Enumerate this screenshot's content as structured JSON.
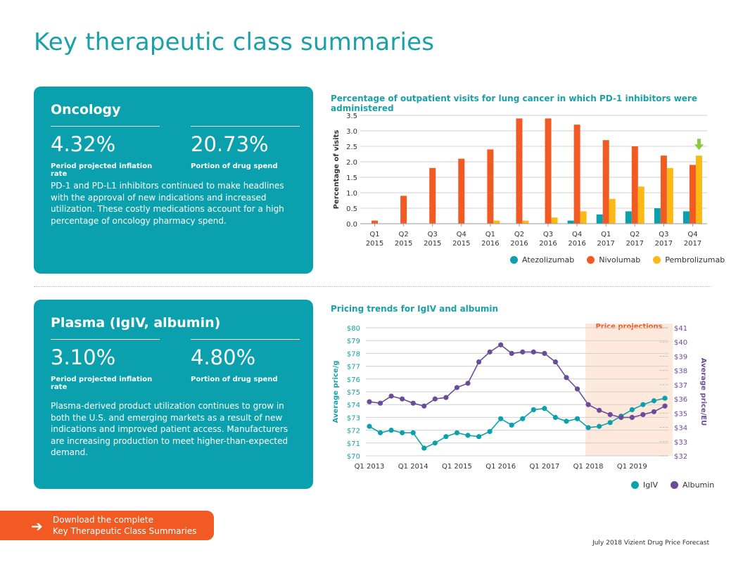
{
  "page": {
    "title": "Key therapeutic class summaries",
    "footer": "July 2018 Vizient Drug Price Forecast"
  },
  "oncology": {
    "title": "Oncology",
    "stat1": {
      "value": "4.32%",
      "label": "Period projected inflation rate"
    },
    "stat2": {
      "value": "20.73%",
      "label": "Portion of drug spend"
    },
    "body": "PD-1 and PD-L1 inhibitors continued to make headlines with the approval of new indications and increased utilization. These costly medications account for a high percentage of oncology pharmacy spend."
  },
  "plasma": {
    "title": "Plasma (IgIV, albumin)",
    "stat1": {
      "value": "3.10%",
      "label": "Period projected inflation rate"
    },
    "stat2": {
      "value": "4.80%",
      "label": "Portion of drug spend"
    },
    "body": "Plasma-derived product utilization continues to grow in both the U.S. and emerging markets as a result of new indications and improved patient access. Manufacturers are increasing production to meet higher-than-expected demand."
  },
  "download": {
    "line1": "Download the complete",
    "line2": "Key Therapeutic Class Summaries"
  },
  "colors": {
    "teal": "#0aa0ad",
    "orange": "#f15a22",
    "yellow": "#fdb913",
    "purple": "#6b4c9a",
    "shade": "#fde9dc"
  },
  "chart_data": [
    {
      "type": "bar",
      "title": "Percentage of outpatient visits for lung cancer in which PD-1 inhibitors were administered",
      "xlabel": "",
      "ylabel": "Percentage of visits",
      "ylim": [
        0,
        3.5
      ],
      "yticks": [
        "0.0",
        "0.5",
        "1.0",
        "1.5",
        "2.0",
        "2.5",
        "3.0",
        "3.5"
      ],
      "grid": true,
      "categories": [
        [
          "Q1",
          "2015"
        ],
        [
          "Q2",
          "2015"
        ],
        [
          "Q3",
          "2015"
        ],
        [
          "Q4",
          "2015"
        ],
        [
          "Q1",
          "2016"
        ],
        [
          "Q2",
          "2016"
        ],
        [
          "Q3",
          "2016"
        ],
        [
          "Q4",
          "2016"
        ],
        [
          "Q1",
          "2017"
        ],
        [
          "Q2",
          "2017"
        ],
        [
          "Q3",
          "2017"
        ],
        [
          "Q4",
          "2017"
        ]
      ],
      "series": [
        {
          "name": "Atezolizumab",
          "color": "#0aa0ad",
          "values": [
            0,
            0,
            0,
            0,
            0,
            0,
            0,
            0.1,
            0.3,
            0.4,
            0.5,
            0.4
          ]
        },
        {
          "name": "Nivolumab",
          "color": "#f15a22",
          "values": [
            0.1,
            0.9,
            1.8,
            2.1,
            2.4,
            3.4,
            3.4,
            3.2,
            2.7,
            2.5,
            2.2,
            1.9
          ]
        },
        {
          "name": "Pembrolizumab",
          "color": "#fdb913",
          "values": [
            0,
            0,
            0,
            0,
            0.1,
            0.1,
            0.2,
            0.4,
            0.8,
            1.2,
            1.8,
            2.2
          ]
        }
      ],
      "annotation": "down-arrow-icon",
      "legend_position": "bottom-right"
    },
    {
      "type": "line",
      "title": "Pricing trends for IgIV and albumin",
      "ylabel": "Average price/g",
      "y2label": "Average price/EU",
      "ylim": [
        70,
        80
      ],
      "y2lim": [
        32,
        41
      ],
      "yticks": [
        "$70",
        "$71",
        "$72",
        "$73",
        "$74",
        "$75",
        "$76",
        "$77",
        "$78",
        "$79",
        "$80"
      ],
      "y2ticks": [
        "$32",
        "$33",
        "$34",
        "$35",
        "$36",
        "$37",
        "$38",
        "$39",
        "$40",
        "$41"
      ],
      "xticks": [
        "Q1 2013",
        "Q1 2014",
        "Q1 2015",
        "Q1 2016",
        "Q1 2017",
        "Q1 2018",
        "Q1 2019"
      ],
      "projection_label": "Price projections",
      "projection_start_index": 20,
      "series": [
        {
          "name": "IgIV",
          "axis": "left",
          "color": "#0aa0ad",
          "values": [
            72.3,
            71.8,
            72.0,
            71.8,
            71.8,
            70.6,
            71.0,
            71.5,
            71.8,
            71.6,
            71.5,
            71.9,
            72.9,
            72.4,
            72.9,
            73.6,
            73.7,
            73.0,
            72.7,
            72.9,
            72.2,
            72.3,
            72.6,
            73.1,
            73.6,
            74.0,
            74.3,
            74.5
          ]
        },
        {
          "name": "Albumin",
          "axis": "right",
          "color": "#6b4c9a",
          "values": [
            35.8,
            35.7,
            36.2,
            36.0,
            35.7,
            35.5,
            36.0,
            36.1,
            36.8,
            37.1,
            38.6,
            39.3,
            39.8,
            39.2,
            39.3,
            39.3,
            39.2,
            38.6,
            37.5,
            36.7,
            35.6,
            35.2,
            34.9,
            34.7,
            34.7,
            34.9,
            35.1,
            35.5
          ]
        }
      ],
      "legend_position": "bottom-right"
    }
  ]
}
